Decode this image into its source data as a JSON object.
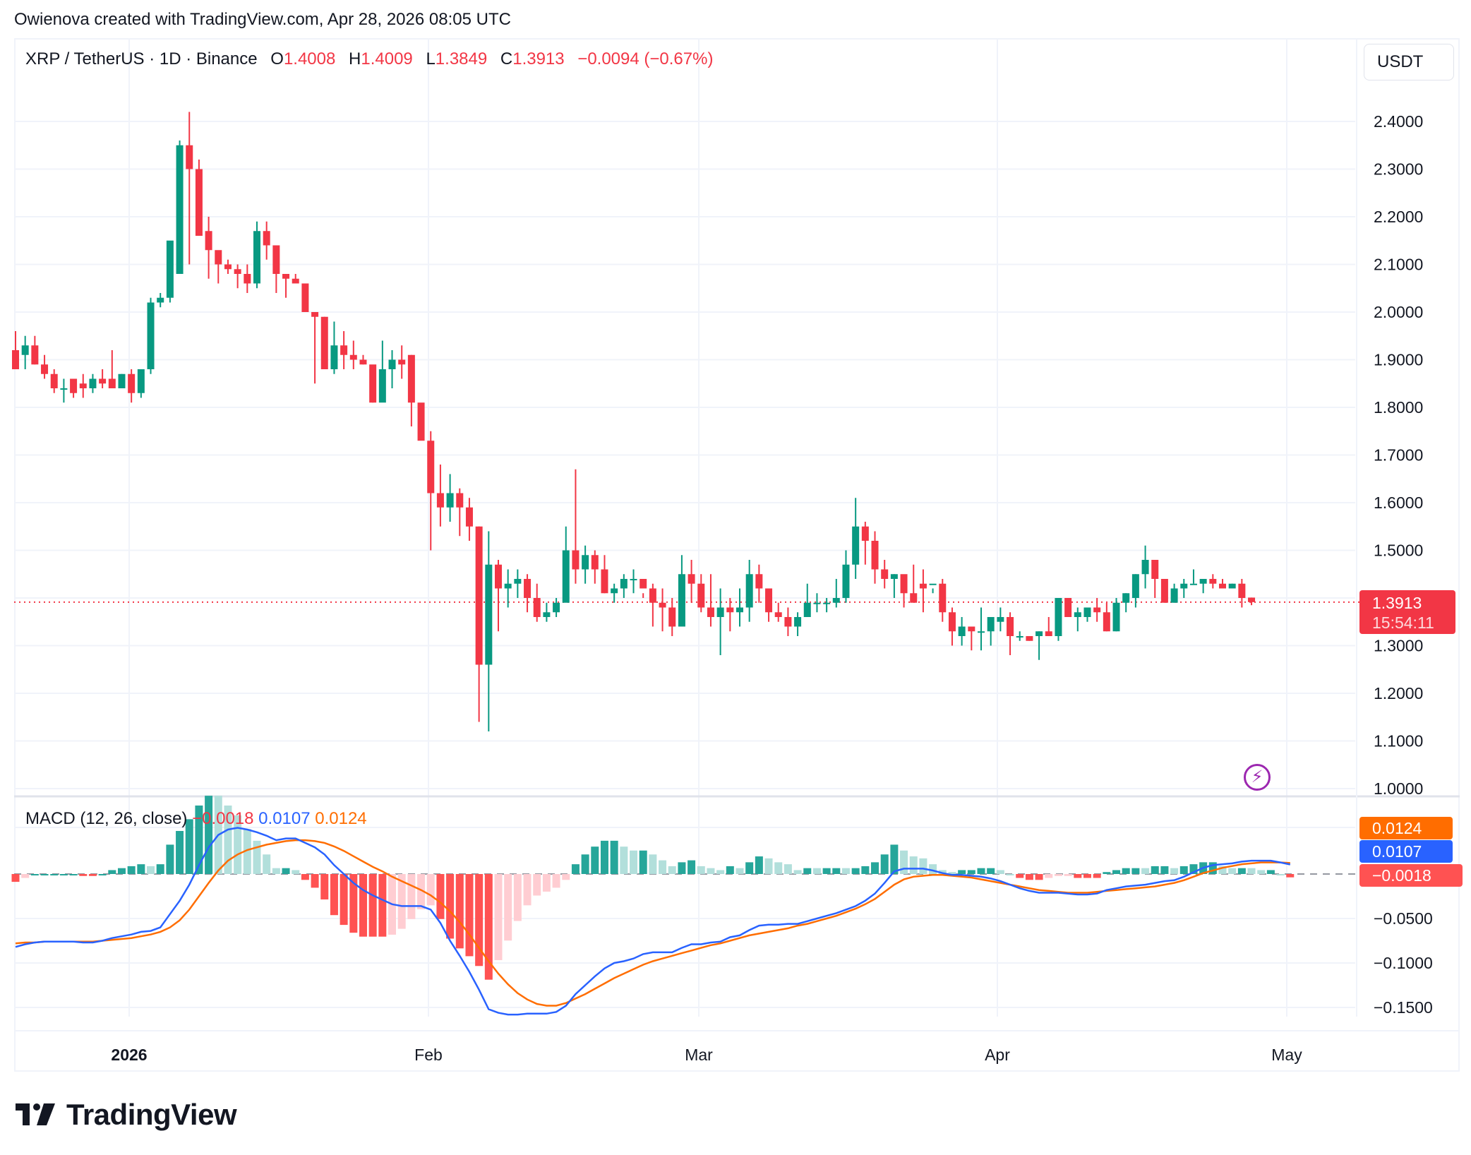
{
  "attribution": "Owienova created with TradingView.com, Apr 28, 2026 08:05 UTC",
  "header": {
    "symbol": "XRP / TetherUS · 1D · Binance",
    "open_label": "O",
    "open": "1.4008",
    "high_label": "H",
    "high": "1.4009",
    "low_label": "L",
    "low": "1.3849",
    "close_label": "C",
    "close": "1.3913",
    "change": "−0.0094 (−0.67%)",
    "currency": "USDT"
  },
  "price_tag": {
    "price": "1.3913",
    "countdown": "15:54:11"
  },
  "macd": {
    "name": "MACD (12, 26, close)",
    "histogram": "−0.0018",
    "macd": "0.0107",
    "signal": "0.0124"
  },
  "colors": {
    "up": "#089981",
    "down": "#f23645",
    "hist_up_strong": "#26a69a",
    "hist_up_weak": "#b2dfdb",
    "hist_down_strong": "#ff5252",
    "hist_down_weak": "#ffcdd2",
    "macd_line": "#2962ff",
    "signal_line": "#ff6d00",
    "grid": "#f0f3fa",
    "last_price": "#f23645"
  },
  "footer": {
    "brand": "TradingView"
  },
  "chart_data": [
    {
      "type": "candlestick",
      "title": "XRP / TetherUS · 1D · Binance",
      "ylabel": "USDT",
      "ylim": [
        1.0,
        2.4
      ],
      "y_ticks": [
        "2.4000",
        "2.3000",
        "2.2000",
        "2.1000",
        "2.0000",
        "1.9000",
        "1.8000",
        "1.7000",
        "1.6000",
        "1.5000",
        "1.3000",
        "1.2000",
        "1.1000",
        "1.0000"
      ],
      "x_ticks": [
        "2026",
        "Feb",
        "Mar",
        "Apr",
        "May"
      ],
      "last_price": 1.3913,
      "start_date": "2025-12-20",
      "ohlc": [
        [
          1.92,
          1.96,
          1.9,
          1.88
        ],
        [
          1.91,
          1.95,
          1.88,
          1.93
        ],
        [
          1.93,
          1.95,
          1.89,
          1.89
        ],
        [
          1.89,
          1.91,
          1.86,
          1.87
        ],
        [
          1.87,
          1.88,
          1.83,
          1.84
        ],
        [
          1.84,
          1.86,
          1.81,
          1.84
        ],
        [
          1.86,
          1.86,
          1.82,
          1.83
        ],
        [
          1.85,
          1.87,
          1.82,
          1.84
        ],
        [
          1.84,
          1.87,
          1.83,
          1.86
        ],
        [
          1.86,
          1.88,
          1.84,
          1.85
        ],
        [
          1.86,
          1.92,
          1.84,
          1.84
        ],
        [
          1.84,
          1.87,
          1.84,
          1.87
        ],
        [
          1.87,
          1.88,
          1.81,
          1.83
        ],
        [
          1.83,
          1.88,
          1.82,
          1.88
        ],
        [
          1.88,
          2.03,
          1.87,
          2.02
        ],
        [
          2.02,
          2.04,
          2.01,
          2.03
        ],
        [
          2.03,
          2.13,
          2.02,
          2.15
        ],
        [
          2.08,
          2.36,
          2.08,
          2.35
        ],
        [
          2.35,
          2.42,
          2.1,
          2.3
        ],
        [
          2.3,
          2.32,
          2.16,
          2.16
        ],
        [
          2.17,
          2.2,
          2.07,
          2.13
        ],
        [
          2.13,
          2.11,
          2.06,
          2.1
        ],
        [
          2.1,
          2.11,
          2.08,
          2.09
        ],
        [
          2.09,
          2.1,
          2.05,
          2.08
        ],
        [
          2.08,
          2.1,
          2.04,
          2.06
        ],
        [
          2.06,
          2.19,
          2.05,
          2.17
        ],
        [
          2.17,
          2.19,
          2.11,
          2.14
        ],
        [
          2.14,
          2.14,
          2.04,
          2.08
        ],
        [
          2.08,
          2.08,
          2.03,
          2.07
        ],
        [
          2.07,
          2.08,
          2.06,
          2.06
        ],
        [
          2.06,
          2.06,
          2.0,
          2.0
        ],
        [
          2.0,
          2.0,
          1.85,
          1.99
        ],
        [
          1.99,
          1.99,
          1.88,
          1.88
        ],
        [
          1.88,
          1.98,
          1.87,
          1.93
        ],
        [
          1.93,
          1.96,
          1.88,
          1.91
        ],
        [
          1.91,
          1.94,
          1.88,
          1.9
        ],
        [
          1.9,
          1.91,
          1.89,
          1.89
        ],
        [
          1.89,
          1.88,
          1.81,
          1.81
        ],
        [
          1.81,
          1.94,
          1.82,
          1.88
        ],
        [
          1.88,
          1.92,
          1.84,
          1.9
        ],
        [
          1.9,
          1.93,
          1.86,
          1.89
        ],
        [
          1.91,
          1.91,
          1.76,
          1.81
        ],
        [
          1.81,
          1.8,
          1.75,
          1.73
        ],
        [
          1.73,
          1.75,
          1.5,
          1.62
        ],
        [
          1.62,
          1.68,
          1.55,
          1.59
        ],
        [
          1.59,
          1.66,
          1.56,
          1.62
        ],
        [
          1.62,
          1.63,
          1.53,
          1.59
        ],
        [
          1.59,
          1.61,
          1.52,
          1.55
        ],
        [
          1.55,
          1.55,
          1.14,
          1.26
        ],
        [
          1.26,
          1.54,
          1.12,
          1.47
        ],
        [
          1.47,
          1.48,
          1.33,
          1.42
        ],
        [
          1.42,
          1.46,
          1.38,
          1.43
        ],
        [
          1.43,
          1.46,
          1.4,
          1.44
        ],
        [
          1.44,
          1.45,
          1.37,
          1.4
        ],
        [
          1.4,
          1.43,
          1.35,
          1.36
        ],
        [
          1.36,
          1.39,
          1.35,
          1.37
        ],
        [
          1.37,
          1.4,
          1.36,
          1.39
        ],
        [
          1.39,
          1.55,
          1.41,
          1.5
        ],
        [
          1.5,
          1.67,
          1.43,
          1.46
        ],
        [
          1.46,
          1.51,
          1.43,
          1.49
        ],
        [
          1.49,
          1.5,
          1.43,
          1.46
        ],
        [
          1.46,
          1.49,
          1.41,
          1.41
        ],
        [
          1.41,
          1.43,
          1.39,
          1.42
        ],
        [
          1.42,
          1.45,
          1.4,
          1.44
        ],
        [
          1.44,
          1.46,
          1.41,
          1.44
        ],
        [
          1.44,
          1.41,
          1.4,
          1.42
        ],
        [
          1.42,
          1.43,
          1.34,
          1.39
        ],
        [
          1.39,
          1.42,
          1.33,
          1.38
        ],
        [
          1.38,
          1.4,
          1.32,
          1.34
        ],
        [
          1.34,
          1.49,
          1.34,
          1.45
        ],
        [
          1.45,
          1.48,
          1.39,
          1.43
        ],
        [
          1.43,
          1.45,
          1.37,
          1.38
        ],
        [
          1.38,
          1.45,
          1.34,
          1.36
        ],
        [
          1.36,
          1.42,
          1.28,
          1.38
        ],
        [
          1.38,
          1.4,
          1.33,
          1.37
        ],
        [
          1.37,
          1.42,
          1.34,
          1.38
        ],
        [
          1.38,
          1.48,
          1.35,
          1.45
        ],
        [
          1.45,
          1.47,
          1.39,
          1.42
        ],
        [
          1.42,
          1.42,
          1.35,
          1.37
        ],
        [
          1.37,
          1.39,
          1.35,
          1.36
        ],
        [
          1.36,
          1.38,
          1.32,
          1.34
        ],
        [
          1.34,
          1.37,
          1.32,
          1.36
        ],
        [
          1.36,
          1.43,
          1.36,
          1.39
        ],
        [
          1.39,
          1.41,
          1.37,
          1.39
        ],
        [
          1.39,
          1.4,
          1.37,
          1.39
        ],
        [
          1.39,
          1.44,
          1.38,
          1.4
        ],
        [
          1.4,
          1.5,
          1.39,
          1.47
        ],
        [
          1.47,
          1.61,
          1.44,
          1.55
        ],
        [
          1.55,
          1.56,
          1.47,
          1.52
        ],
        [
          1.52,
          1.54,
          1.43,
          1.46
        ],
        [
          1.46,
          1.48,
          1.42,
          1.44
        ],
        [
          1.44,
          1.45,
          1.4,
          1.45
        ],
        [
          1.45,
          1.43,
          1.38,
          1.41
        ],
        [
          1.41,
          1.47,
          1.4,
          1.39
        ],
        [
          1.43,
          1.46,
          1.37,
          1.42
        ],
        [
          1.43,
          1.42,
          1.41,
          1.43
        ],
        [
          1.43,
          1.44,
          1.35,
          1.37
        ],
        [
          1.37,
          1.38,
          1.3,
          1.33
        ],
        [
          1.32,
          1.36,
          1.3,
          1.34
        ],
        [
          1.34,
          1.34,
          1.29,
          1.33
        ],
        [
          1.33,
          1.38,
          1.29,
          1.33
        ],
        [
          1.33,
          1.36,
          1.3,
          1.36
        ],
        [
          1.35,
          1.38,
          1.33,
          1.36
        ],
        [
          1.36,
          1.37,
          1.28,
          1.32
        ],
        [
          1.32,
          1.33,
          1.31,
          1.32
        ],
        [
          1.32,
          1.32,
          1.31,
          1.31
        ],
        [
          1.32,
          1.33,
          1.27,
          1.33
        ],
        [
          1.33,
          1.36,
          1.32,
          1.32
        ],
        [
          1.32,
          1.39,
          1.31,
          1.4
        ],
        [
          1.4,
          1.39,
          1.36,
          1.36
        ],
        [
          1.36,
          1.38,
          1.33,
          1.37
        ],
        [
          1.36,
          1.38,
          1.35,
          1.38
        ],
        [
          1.38,
          1.4,
          1.35,
          1.37
        ],
        [
          1.37,
          1.39,
          1.33,
          1.33
        ],
        [
          1.33,
          1.4,
          1.33,
          1.39
        ],
        [
          1.39,
          1.41,
          1.37,
          1.41
        ],
        [
          1.4,
          1.45,
          1.38,
          1.45
        ],
        [
          1.45,
          1.51,
          1.42,
          1.48
        ],
        [
          1.48,
          1.48,
          1.4,
          1.44
        ],
        [
          1.44,
          1.43,
          1.39,
          1.39
        ],
        [
          1.39,
          1.43,
          1.39,
          1.42
        ],
        [
          1.42,
          1.44,
          1.4,
          1.43
        ],
        [
          1.43,
          1.46,
          1.43,
          1.43
        ],
        [
          1.43,
          1.44,
          1.41,
          1.44
        ],
        [
          1.44,
          1.45,
          1.42,
          1.43
        ],
        [
          1.43,
          1.44,
          1.42,
          1.42
        ],
        [
          1.42,
          1.43,
          1.42,
          1.43
        ],
        [
          1.43,
          1.44,
          1.38,
          1.4
        ],
        [
          1.4008,
          1.4009,
          1.3849,
          1.3913
        ]
      ]
    },
    {
      "type": "macd",
      "title": "MACD (12, 26, close)",
      "ylim": [
        -0.17,
        0.055
      ],
      "y_ticks": [
        "−0.0500",
        "−0.1000",
        "−0.1500"
      ],
      "last_values": {
        "histogram": -0.0018,
        "macd": 0.0107,
        "signal": 0.0124
      },
      "macd_line": [
        -0.082,
        -0.079,
        -0.077,
        -0.076,
        -0.076,
        -0.076,
        -0.076,
        -0.077,
        -0.077,
        -0.075,
        -0.072,
        -0.07,
        -0.068,
        -0.065,
        -0.064,
        -0.06,
        -0.045,
        -0.03,
        -0.012,
        0.01,
        0.03,
        0.044,
        0.05,
        0.052,
        0.05,
        0.047,
        0.043,
        0.038,
        0.04,
        0.04,
        0.035,
        0.03,
        0.022,
        0.01,
        0.0,
        -0.01,
        -0.018,
        -0.024,
        -0.029,
        -0.034,
        -0.036,
        -0.036,
        -0.036,
        -0.04,
        -0.055,
        -0.075,
        -0.092,
        -0.11,
        -0.13,
        -0.152,
        -0.156,
        -0.158,
        -0.158,
        -0.157,
        -0.157,
        -0.157,
        -0.155,
        -0.148,
        -0.135,
        -0.125,
        -0.115,
        -0.106,
        -0.1,
        -0.098,
        -0.095,
        -0.09,
        -0.088,
        -0.088,
        -0.088,
        -0.083,
        -0.079,
        -0.079,
        -0.077,
        -0.076,
        -0.071,
        -0.069,
        -0.063,
        -0.058,
        -0.057,
        -0.057,
        -0.056,
        -0.056,
        -0.053,
        -0.05,
        -0.047,
        -0.044,
        -0.04,
        -0.036,
        -0.03,
        -0.022,
        -0.01,
        0.003,
        0.006,
        0.006,
        0.006,
        0.004,
        0.001,
        -0.001,
        -0.001,
        -0.002,
        -0.003,
        -0.005,
        -0.008,
        -0.012,
        -0.016,
        -0.019,
        -0.021,
        -0.021,
        -0.021,
        -0.022,
        -0.023,
        -0.023,
        -0.022,
        -0.018,
        -0.016,
        -0.014,
        -0.013,
        -0.012,
        -0.01,
        -0.008,
        -0.007,
        -0.003,
        0.002,
        0.007,
        0.01,
        0.011,
        0.012,
        0.014,
        0.015,
        0.015,
        0.015,
        0.013,
        0.0107
      ],
      "signal_line": [
        -0.078,
        -0.077,
        -0.077,
        -0.076,
        -0.076,
        -0.076,
        -0.076,
        -0.076,
        -0.076,
        -0.075,
        -0.074,
        -0.073,
        -0.072,
        -0.07,
        -0.068,
        -0.065,
        -0.06,
        -0.052,
        -0.04,
        -0.025,
        -0.01,
        0.004,
        0.015,
        0.022,
        0.027,
        0.03,
        0.033,
        0.035,
        0.037,
        0.038,
        0.038,
        0.037,
        0.035,
        0.031,
        0.026,
        0.02,
        0.014,
        0.008,
        0.003,
        -0.003,
        -0.008,
        -0.013,
        -0.018,
        -0.024,
        -0.032,
        -0.042,
        -0.054,
        -0.068,
        -0.083,
        -0.098,
        -0.112,
        -0.124,
        -0.134,
        -0.141,
        -0.146,
        -0.148,
        -0.148,
        -0.145,
        -0.14,
        -0.135,
        -0.129,
        -0.123,
        -0.117,
        -0.112,
        -0.107,
        -0.102,
        -0.098,
        -0.095,
        -0.092,
        -0.089,
        -0.086,
        -0.083,
        -0.08,
        -0.078,
        -0.075,
        -0.072,
        -0.069,
        -0.067,
        -0.065,
        -0.063,
        -0.061,
        -0.058,
        -0.056,
        -0.053,
        -0.05,
        -0.047,
        -0.043,
        -0.039,
        -0.034,
        -0.028,
        -0.02,
        -0.012,
        -0.006,
        -0.003,
        -0.002,
        -0.001,
        -0.001,
        -0.002,
        -0.003,
        -0.004,
        -0.006,
        -0.008,
        -0.01,
        -0.012,
        -0.014,
        -0.016,
        -0.018,
        -0.019,
        -0.02,
        -0.021,
        -0.021,
        -0.021,
        -0.02,
        -0.019,
        -0.018,
        -0.017,
        -0.016,
        -0.015,
        -0.014,
        -0.012,
        -0.01,
        -0.007,
        -0.003,
        0.001,
        0.004,
        0.007,
        0.009,
        0.011,
        0.012,
        0.013,
        0.013,
        0.013,
        0.0124
      ]
    }
  ]
}
